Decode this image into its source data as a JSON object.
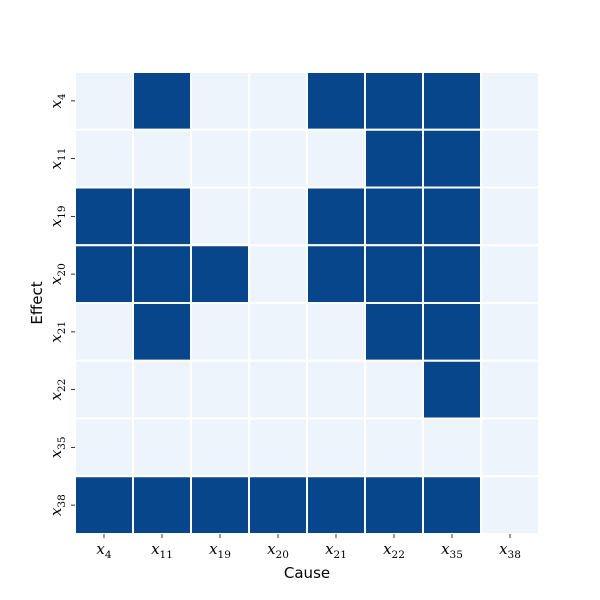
{
  "chart_data": {
    "type": "heatmap",
    "xlabel": "Cause",
    "ylabel": "Effect",
    "x_categories": [
      {
        "base": "x",
        "sub": "4"
      },
      {
        "base": "x",
        "sub": "11"
      },
      {
        "base": "x",
        "sub": "19"
      },
      {
        "base": "x",
        "sub": "20"
      },
      {
        "base": "x",
        "sub": "21"
      },
      {
        "base": "x",
        "sub": "22"
      },
      {
        "base": "x",
        "sub": "35"
      },
      {
        "base": "x",
        "sub": "38"
      }
    ],
    "y_categories": [
      {
        "base": "x",
        "sub": "4"
      },
      {
        "base": "x",
        "sub": "11"
      },
      {
        "base": "x",
        "sub": "19"
      },
      {
        "base": "x",
        "sub": "20"
      },
      {
        "base": "x",
        "sub": "21"
      },
      {
        "base": "x",
        "sub": "22"
      },
      {
        "base": "x",
        "sub": "35"
      },
      {
        "base": "x",
        "sub": "38"
      }
    ],
    "values": [
      [
        0,
        1,
        0,
        0,
        1,
        1,
        1,
        0
      ],
      [
        0,
        0,
        0,
        0,
        0,
        1,
        1,
        0
      ],
      [
        1,
        1,
        0,
        0,
        1,
        1,
        1,
        0
      ],
      [
        1,
        1,
        1,
        0,
        1,
        1,
        1,
        0
      ],
      [
        0,
        1,
        0,
        0,
        0,
        1,
        1,
        0
      ],
      [
        0,
        0,
        0,
        0,
        0,
        0,
        1,
        0
      ],
      [
        0,
        0,
        0,
        0,
        0,
        0,
        0,
        0
      ],
      [
        1,
        1,
        1,
        1,
        1,
        1,
        1,
        0
      ]
    ],
    "colors": {
      "high": "#08468b",
      "low": "#edf4fc",
      "cell_border": "#ffffff"
    },
    "grid": false,
    "legend": false
  }
}
